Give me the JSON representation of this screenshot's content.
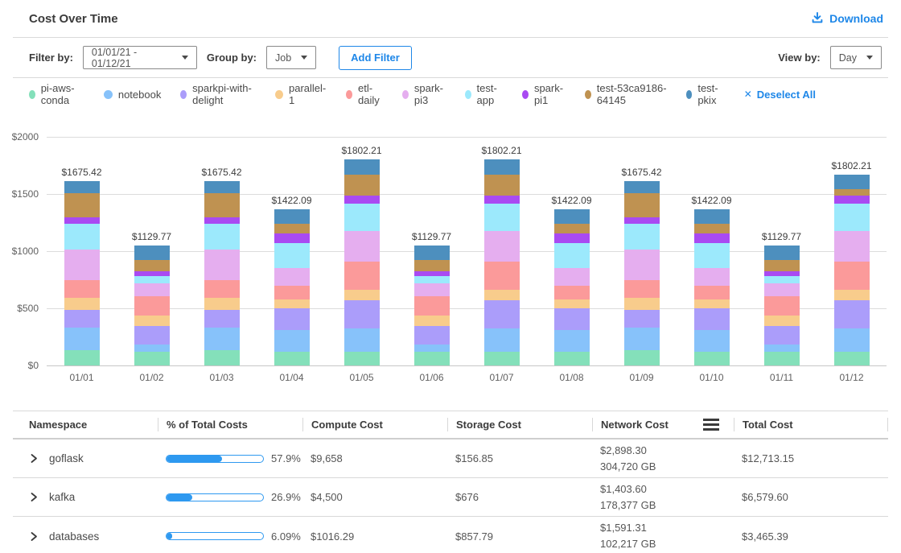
{
  "header": {
    "title": "Cost Over Time",
    "download_label": "Download"
  },
  "filters": {
    "filter_by_label": "Filter by:",
    "date_range_value": "01/01/21 - 01/12/21",
    "group_by_label": "Group by:",
    "group_by_value": "Job",
    "add_filter_label": "Add Filter",
    "view_by_label": "View by:",
    "view_by_value": "Day"
  },
  "legend": {
    "deselect_icon": "✕",
    "deselect_all_label": "Deselect All"
  },
  "colors": {
    "accent_blue": "#1e87e8",
    "progress_blue": "#2e99f0"
  },
  "chart_data": {
    "type": "stacked-bar",
    "title": "Cost Over Time",
    "x": [
      "01/01",
      "01/02",
      "01/03",
      "01/04",
      "01/05",
      "01/06",
      "01/07",
      "01/08",
      "01/09",
      "01/10",
      "01/11",
      "01/12"
    ],
    "y_axis": {
      "max": 2000,
      "ticks": [
        {
          "label": "$0",
          "value": 0
        },
        {
          "label": "$500",
          "value": 500
        },
        {
          "label": "$1000",
          "value": 1000
        },
        {
          "label": "$1500",
          "value": 1500
        },
        {
          "label": "$2000",
          "value": 2000
        }
      ]
    },
    "bar_total_labels": [
      "$1675.42",
      "$1129.77",
      "$1675.42",
      "$1422.09",
      "$1802.21",
      "$1129.77",
      "$1802.21",
      "$1422.09",
      "$1675.42",
      "$1422.09",
      "$1129.77",
      "$1802.21"
    ],
    "grid": true,
    "legend_position": "top",
    "series": [
      {
        "name": "pi-aws-conda",
        "color": "#84E0BA",
        "values": [
          130,
          120,
          130,
          120,
          120,
          120,
          120,
          120,
          130,
          120,
          120,
          120
        ]
      },
      {
        "name": "notebook",
        "color": "#87C2FA",
        "values": [
          200,
          63,
          200,
          190,
          204,
          63,
          204,
          190,
          200,
          190,
          63,
          204
        ]
      },
      {
        "name": "sparkpi-with-delight",
        "color": "#AB9DFA",
        "values": [
          158,
          162,
          158,
          190,
          246,
          162,
          246,
          190,
          158,
          190,
          162,
          246
        ]
      },
      {
        "name": "parallel-1",
        "color": "#F8CC8C",
        "values": [
          103,
          92,
          103,
          77,
          92,
          92,
          92,
          77,
          103,
          77,
          92,
          92
        ]
      },
      {
        "name": "etl-daily",
        "color": "#FB9A9A",
        "values": [
          152,
          169,
          152,
          120,
          246,
          169,
          246,
          120,
          152,
          120,
          169,
          246
        ]
      },
      {
        "name": "spark-pi3",
        "color": "#E5AEEF",
        "values": [
          270,
          113,
          270,
          155,
          268,
          113,
          268,
          155,
          270,
          155,
          113,
          268
        ]
      },
      {
        "name": "test-app",
        "color": "#9CE9FC",
        "values": [
          226,
          63,
          226,
          218,
          239,
          63,
          239,
          218,
          226,
          218,
          63,
          239
        ]
      },
      {
        "name": "spark-pi1",
        "color": "#A94AF2",
        "values": [
          58,
          42,
          58,
          85,
          70,
          42,
          70,
          85,
          58,
          85,
          42,
          70
        ]
      },
      {
        "name": "test-53ca9186-64145",
        "color": "#BF9251",
        "values": [
          210,
          99,
          210,
          85,
          183,
          99,
          183,
          85,
          210,
          85,
          99,
          56
        ]
      },
      {
        "name": "test-pkix",
        "color": "#4D8FBE",
        "values": [
          107,
          127,
          107,
          127,
          134,
          127,
          134,
          127,
          107,
          127,
          127,
          127
        ]
      }
    ]
  },
  "table": {
    "columns": [
      "Namespace",
      "% of Total Costs",
      "Compute Cost",
      "Storage Cost",
      "Network  Cost",
      "Total Cost"
    ],
    "rows": [
      {
        "namespace": "goflask",
        "pct": 57.9,
        "pct_label": "57.9%",
        "compute": "$9,658",
        "storage": "$156.85",
        "network_cost": "$2,898.30",
        "network_gb": "304,720 GB",
        "total": "$12,713.15"
      },
      {
        "namespace": "kafka",
        "pct": 26.9,
        "pct_label": "26.9%",
        "compute": "$4,500",
        "storage": "$676",
        "network_cost": "$1,403.60",
        "network_gb": "178,377 GB",
        "total": "$6,579.60"
      },
      {
        "namespace": "databases",
        "pct": 6.09,
        "pct_label": "6.09%",
        "compute": "$1016.29",
        "storage": "$857.79",
        "network_cost": "$1,591.31",
        "network_gb": "102,217 GB",
        "total": "$3,465.39"
      }
    ]
  }
}
